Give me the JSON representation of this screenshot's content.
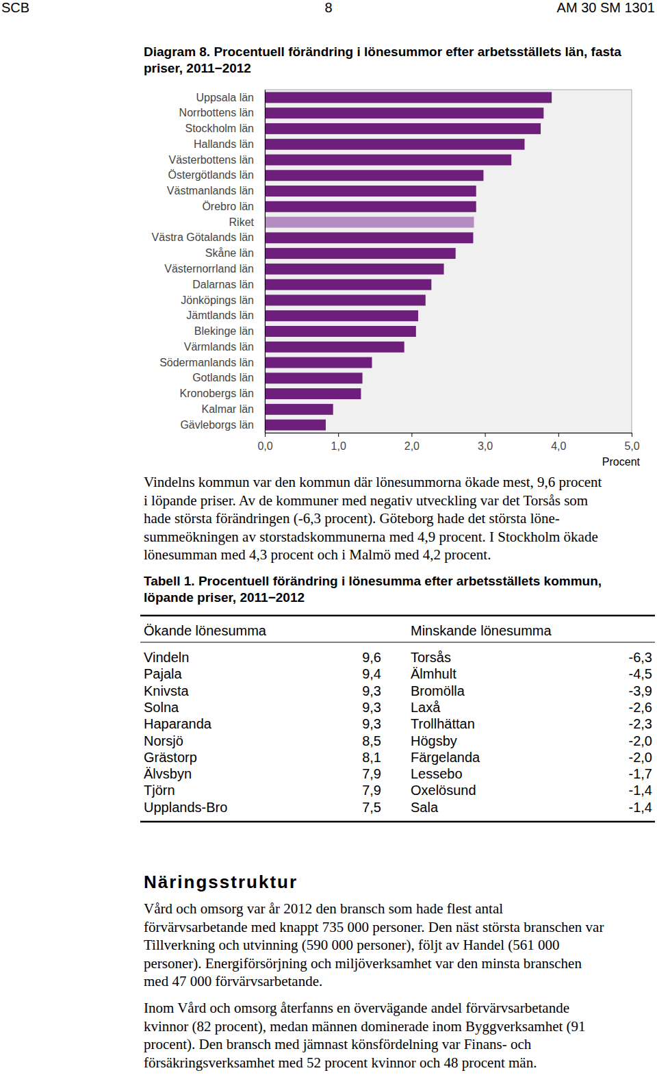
{
  "header": {
    "left": "SCB",
    "page": "8",
    "right": "AM 30 SM 1301"
  },
  "chart_data": {
    "type": "bar",
    "orientation": "horizontal",
    "title": "Diagram 8. Procentuell förändring i lönesummor efter arbetsställets län, fasta priser, 2011−2012",
    "x_label": "Procent",
    "categories": [
      "Uppsala län",
      "Norrbottens län",
      "Stockholm län",
      "Hallands län",
      "Västerbottens län",
      "Östergötlands län",
      "Västmanlands län",
      "Örebro län",
      "Riket",
      "Västra Götalands län",
      "Skåne län",
      "Västernorrland län",
      "Dalarnas län",
      "Jönköpings län",
      "Jämtlands län",
      "Blekinge län",
      "Värmlands län",
      "Södermanlands län",
      "Gotlands län",
      "Kronobergs län",
      "Kalmar län",
      "Gävleborgs län"
    ],
    "values": [
      3.91,
      3.8,
      3.76,
      3.54,
      3.36,
      2.98,
      2.88,
      2.88,
      2.85,
      2.84,
      2.6,
      2.44,
      2.27,
      2.19,
      2.09,
      2.06,
      1.9,
      1.46,
      1.33,
      1.31,
      0.93,
      0.83
    ],
    "colors": [
      "#6e1f7c",
      "#6e1f7c",
      "#6e1f7c",
      "#6e1f7c",
      "#6e1f7c",
      "#6e1f7c",
      "#6e1f7c",
      "#6e1f7c",
      "#b48cc0",
      "#6e1f7c",
      "#6e1f7c",
      "#6e1f7c",
      "#6e1f7c",
      "#6e1f7c",
      "#6e1f7c",
      "#6e1f7c",
      "#6e1f7c",
      "#6e1f7c",
      "#6e1f7c",
      "#6e1f7c",
      "#6e1f7c",
      "#6e1f7c"
    ],
    "xlim": [
      0,
      5
    ],
    "xticks": [
      {
        "value": 0,
        "label": "0,0"
      },
      {
        "value": 1,
        "label": "1,0"
      },
      {
        "value": 2,
        "label": "2,0"
      },
      {
        "value": 3,
        "label": "3,0"
      },
      {
        "value": 4,
        "label": "4,0"
      },
      {
        "value": 5,
        "label": "5,0"
      }
    ],
    "grid": false
  },
  "paragraph1": {
    "lines": [
      "Vindelns kommun var den kommun där lönesummorna ökade mest, 9,6 procent",
      "i löpande priser. Av de kommuner med negativ utveckling var det Torsås som",
      "hade största förändringen (-6,3 procent). Göteborg hade det största löne-",
      "summeökningen av storstadskommunerna med 4,9 procent. I Stockholm ökade",
      "lönesumman med 4,3 procent och i Malmö med 4,2 procent."
    ]
  },
  "table": {
    "title_lines": [
      "Tabell 1. Procentuell förändring i lönesumma efter arbetsställets kommun,",
      "löpande priser, 2011−2012"
    ],
    "headers": [
      "Ökande lönesumma",
      "Minskande lönesumma"
    ],
    "increasing": [
      [
        "Vindeln",
        "9,6"
      ],
      [
        "Pajala",
        "9,4"
      ],
      [
        "Knivsta",
        "9,3"
      ],
      [
        "Solna",
        "9,3"
      ],
      [
        "Haparanda",
        "9,3"
      ],
      [
        "Norsjö",
        "8,5"
      ],
      [
        "Grästorp",
        "8,1"
      ],
      [
        "Älvsbyn",
        "7,9"
      ],
      [
        "Tjörn",
        "7,9"
      ],
      [
        "Upplands-Bro",
        "7,5"
      ]
    ],
    "decreasing": [
      [
        "Torsås",
        "-6,3"
      ],
      [
        "Älmhult",
        "-4,5"
      ],
      [
        "Bromölla",
        "-3,9"
      ],
      [
        "Laxå",
        "-2,6"
      ],
      [
        "Trollhättan",
        "-2,3"
      ],
      [
        "Högsby",
        "-2,0"
      ],
      [
        "Färgelanda",
        "-2,0"
      ],
      [
        "Lessebo",
        "-1,7"
      ],
      [
        "Oxelösund",
        "-1,4"
      ],
      [
        "Sala",
        "-1,4"
      ]
    ]
  },
  "section": {
    "heading": "Näringsstruktur",
    "paragraphs": [
      {
        "lines": [
          "Vård och omsorg var år 2012 den bransch som hade flest antal",
          "förvärvsarbetande med knappt 735 000 personer. Den näst största branschen var",
          "Tillverkning och utvinning (590 000 personer), följt av Handel (561 000",
          "personer). Energiförsörjning och miljöverksamhet var den minsta branschen",
          "med 47 000 förvärvsarbetande."
        ]
      },
      {
        "lines": [
          "Inom Vård och omsorg återfanns en övervägande andel förvärvsarbetande",
          "kvinnor (82 procent), medan männen dominerade inom Byggverksamhet (91",
          "procent). Den bransch med jämnast könsfördelning var Finans- och",
          "försäkringsverksamhet med 52 procent kvinnor och 48 procent män."
        ]
      }
    ]
  }
}
